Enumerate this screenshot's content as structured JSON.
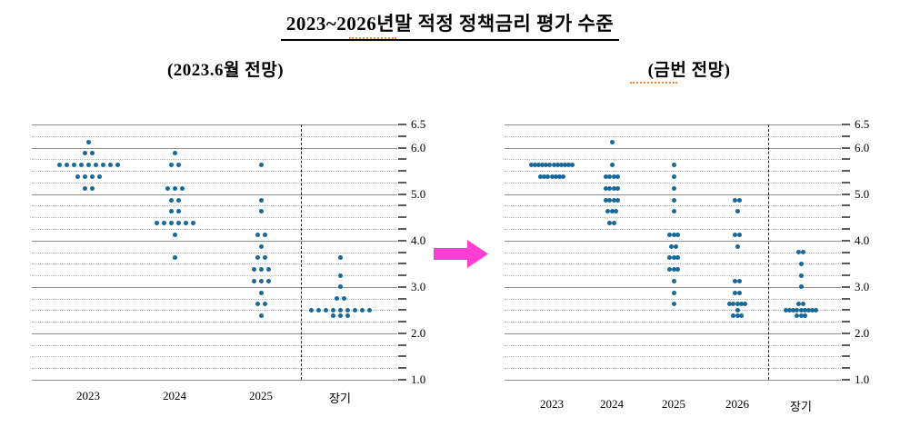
{
  "page_title": "2023~2026년말 적정 정책금리 평가 수준",
  "arrow": {
    "color": "#ff3fd1"
  },
  "style": {
    "dot_color": "#17689b"
  },
  "chart_data": [
    {
      "type": "scatter",
      "title": "(2023.6월 전망)",
      "ylim": [
        1.0,
        6.5
      ],
      "grid_step": 0.25,
      "ytick_labels": [
        "6.5",
        "6.0",
        "5.0",
        "4.0",
        "3.0",
        "2.0",
        "1.0"
      ],
      "categories": [
        "2023",
        "2024",
        "2025",
        "장기"
      ],
      "separator_before_category": "장기",
      "series": [
        {
          "category": "2023",
          "dots": [
            {
              "rate": 6.125,
              "count": 1
            },
            {
              "rate": 5.875,
              "count": 2
            },
            {
              "rate": 5.625,
              "count": 9
            },
            {
              "rate": 5.375,
              "count": 4
            },
            {
              "rate": 5.125,
              "count": 2
            }
          ]
        },
        {
          "category": "2024",
          "dots": [
            {
              "rate": 5.875,
              "count": 1
            },
            {
              "rate": 5.625,
              "count": 2
            },
            {
              "rate": 5.125,
              "count": 3
            },
            {
              "rate": 4.875,
              "count": 2
            },
            {
              "rate": 4.625,
              "count": 2
            },
            {
              "rate": 4.375,
              "count": 6
            },
            {
              "rate": 4.125,
              "count": 1
            },
            {
              "rate": 3.625,
              "count": 1
            }
          ]
        },
        {
          "category": "2025",
          "dots": [
            {
              "rate": 5.625,
              "count": 1
            },
            {
              "rate": 4.875,
              "count": 1
            },
            {
              "rate": 4.625,
              "count": 1
            },
            {
              "rate": 4.125,
              "count": 2
            },
            {
              "rate": 3.875,
              "count": 1
            },
            {
              "rate": 3.625,
              "count": 2
            },
            {
              "rate": 3.375,
              "count": 3
            },
            {
              "rate": 3.125,
              "count": 3
            },
            {
              "rate": 2.875,
              "count": 1
            },
            {
              "rate": 2.625,
              "count": 2
            },
            {
              "rate": 2.375,
              "count": 1
            }
          ]
        },
        {
          "category": "장기",
          "dots": [
            {
              "rate": 3.625,
              "count": 1
            },
            {
              "rate": 3.25,
              "count": 1
            },
            {
              "rate": 3.0,
              "count": 1
            },
            {
              "rate": 2.75,
              "count": 2
            },
            {
              "rate": 2.5,
              "count": 9
            },
            {
              "rate": 2.375,
              "count": 3
            }
          ]
        }
      ]
    },
    {
      "type": "scatter",
      "title": "(금번 전망)",
      "ylim": [
        1.0,
        6.5
      ],
      "grid_step": 0.25,
      "ytick_labels": [
        "6.5",
        "6.0",
        "5.0",
        "4.0",
        "3.0",
        "2.0",
        "1.0"
      ],
      "categories": [
        "2023",
        "2024",
        "2025",
        "2026",
        "장기"
      ],
      "separator_before_category": "장기",
      "series": [
        {
          "category": "2023",
          "dots": [
            {
              "rate": 5.625,
              "count": 12
            },
            {
              "rate": 5.375,
              "count": 7
            }
          ]
        },
        {
          "category": "2024",
          "dots": [
            {
              "rate": 6.125,
              "count": 1
            },
            {
              "rate": 5.625,
              "count": 1
            },
            {
              "rate": 5.375,
              "count": 4
            },
            {
              "rate": 5.125,
              "count": 4
            },
            {
              "rate": 4.875,
              "count": 4
            },
            {
              "rate": 4.625,
              "count": 3
            },
            {
              "rate": 4.375,
              "count": 2
            }
          ]
        },
        {
          "category": "2025",
          "dots": [
            {
              "rate": 5.625,
              "count": 1
            },
            {
              "rate": 5.375,
              "count": 1
            },
            {
              "rate": 5.125,
              "count": 1
            },
            {
              "rate": 4.875,
              "count": 1
            },
            {
              "rate": 4.625,
              "count": 1
            },
            {
              "rate": 4.125,
              "count": 3
            },
            {
              "rate": 3.875,
              "count": 2
            },
            {
              "rate": 3.625,
              "count": 3
            },
            {
              "rate": 3.375,
              "count": 3
            },
            {
              "rate": 3.125,
              "count": 1
            },
            {
              "rate": 2.875,
              "count": 1
            },
            {
              "rate": 2.625,
              "count": 1
            }
          ]
        },
        {
          "category": "2026",
          "dots": [
            {
              "rate": 4.875,
              "count": 2
            },
            {
              "rate": 4.625,
              "count": 1
            },
            {
              "rate": 4.125,
              "count": 2
            },
            {
              "rate": 3.875,
              "count": 1
            },
            {
              "rate": 3.125,
              "count": 2
            },
            {
              "rate": 2.875,
              "count": 2
            },
            {
              "rate": 2.625,
              "count": 5
            },
            {
              "rate": 2.5,
              "count": 1
            },
            {
              "rate": 2.375,
              "count": 3
            }
          ]
        },
        {
          "category": "장기",
          "dots": [
            {
              "rate": 3.75,
              "count": 2
            },
            {
              "rate": 3.5,
              "count": 1
            },
            {
              "rate": 3.25,
              "count": 1
            },
            {
              "rate": 3.0,
              "count": 1
            },
            {
              "rate": 2.625,
              "count": 2
            },
            {
              "rate": 2.5,
              "count": 9
            },
            {
              "rate": 2.375,
              "count": 3
            }
          ]
        }
      ]
    }
  ]
}
